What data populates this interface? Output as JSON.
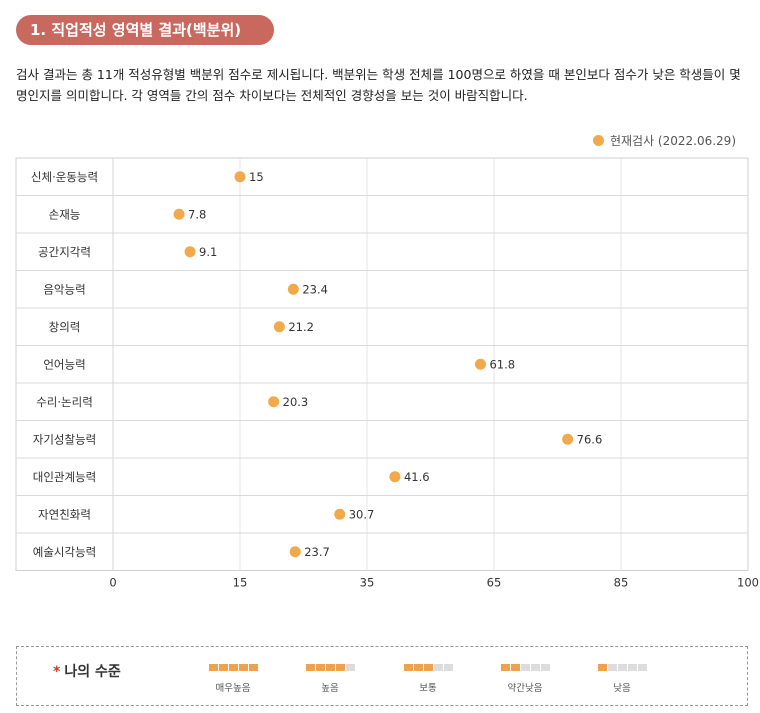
{
  "section": {
    "title": "1. 직업적성 영역별 결과(백분위)",
    "description": "검사 결과는 총 11개 적성유형별 백분위 점수로 제시됩니다. 백분위는 학생 전체를 100명으로 하였을 때 본인보다 점수가 낮은 학생들이 몇 명인지를 의미합니다. 각 영역들 간의 점수 차이보다는 전체적인 경향성을 보는 것이 바람직합니다."
  },
  "legend": {
    "label": "현재검사 (2022.06.29)",
    "color": "#f2a94b"
  },
  "chart_data": {
    "type": "scatter",
    "orientation": "horizontal",
    "categories": [
      "신체·운동능력",
      "손재능",
      "공간지각력",
      "음악능력",
      "창의력",
      "언어능력",
      "수리·논리력",
      "자기성찰능력",
      "대인관계능력",
      "자연친화력",
      "예술시각능력"
    ],
    "series": [
      {
        "name": "현재검사 (2022.06.29)",
        "values": [
          15,
          7.8,
          9.1,
          23.4,
          21.2,
          61.8,
          20.3,
          76.6,
          41.6,
          30.7,
          23.7
        ],
        "color": "#f2a94b"
      }
    ],
    "xticks": [
      0,
      15,
      35,
      65,
      85,
      100
    ],
    "xlim": [
      0,
      100
    ],
    "grid": true
  },
  "levels": {
    "title": "나의 수준",
    "star": "*",
    "items": [
      {
        "label": "매우높음",
        "filled": 5
      },
      {
        "label": "높음",
        "filled": 4
      },
      {
        "label": "보통",
        "filled": 3
      },
      {
        "label": "약간낮음",
        "filled": 2
      },
      {
        "label": "낮음",
        "filled": 1
      }
    ]
  }
}
